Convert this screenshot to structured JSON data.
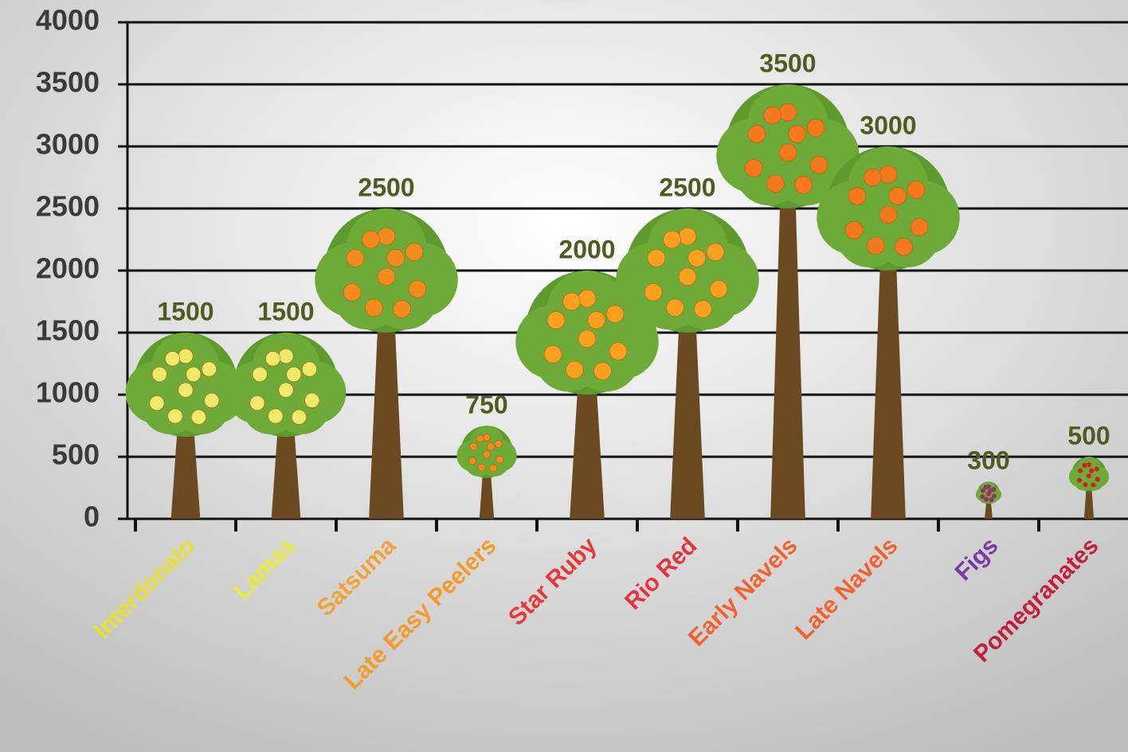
{
  "chart_data": {
    "type": "pictorial-bar",
    "categories": [
      "Interdonato",
      "Lamas",
      "Satsuma",
      "Late Easy Peelers",
      "Star Ruby",
      "Rio Red",
      "Early Navels",
      "Late Navels",
      "Figs",
      "Pomegranates"
    ],
    "values": [
      1500,
      1500,
      2500,
      750,
      2000,
      2500,
      3500,
      3000,
      300,
      500
    ],
    "label_colors": [
      "#e6e032",
      "#eaea3a",
      "#f2a23a",
      "#f29a2a",
      "#e63a3a",
      "#e23444",
      "#f06232",
      "#f06232",
      "#7a38a8",
      "#c0203e"
    ],
    "fruit_colors": [
      "#f0e86a",
      "#f0e86a",
      "#f58a1e",
      "#f58a1e",
      "#f9a020",
      "#f9a020",
      "#f5781e",
      "#f5781e",
      "#7a3a78",
      "#c8203a"
    ],
    "ylim": [
      0,
      4000
    ],
    "yticks": [
      0,
      500,
      1000,
      1500,
      2000,
      2500,
      3000,
      3500,
      4000
    ],
    "grid": true
  }
}
